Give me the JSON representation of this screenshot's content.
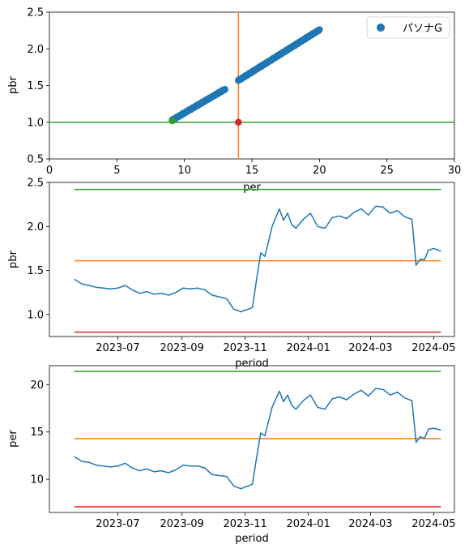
{
  "colors": {
    "blue": "#1f77b4",
    "orange": "#ff7f0e",
    "green": "#2ca02c",
    "red": "#d62728"
  },
  "chart_data": [
    {
      "type": "scatter",
      "xlabel": "per",
      "ylabel": "pbr",
      "xlim": [
        0,
        30
      ],
      "ylim": [
        0.5,
        2.5
      ],
      "xticks": [
        "0",
        "5",
        "10",
        "15",
        "20",
        "25",
        "30"
      ],
      "yticks": [
        "0.5",
        "1.0",
        "1.5",
        "2.0",
        "2.5"
      ],
      "legend": {
        "placement": "top-right",
        "entries": [
          "パソナG"
        ]
      },
      "series": [
        {
          "name": "パソナG",
          "color": "blue",
          "segments": [
            {
              "x_start": 9.1,
              "x_end": 13.0,
              "y_start": 1.03,
              "y_end": 1.45,
              "points": 60
            },
            {
              "x_start": 14.0,
              "x_end": 20.0,
              "y_start": 1.57,
              "y_end": 2.26,
              "points": 90
            }
          ]
        }
      ],
      "hline": {
        "y": 1.0,
        "color": "green"
      },
      "vline": {
        "x": 14.0,
        "color": "orange"
      },
      "marker_red": {
        "x": 14.0,
        "y": 1.0
      },
      "marker_green": {
        "x": 9.1,
        "y": 1.02
      }
    },
    {
      "type": "line",
      "xlabel": "period",
      "ylabel": "pbr",
      "ylim": [
        0.75,
        2.5
      ],
      "xticks": [
        "2023-07",
        "2023-09",
        "2023-11",
        "2024-01",
        "2024-03",
        "2024-05"
      ],
      "yticks": [
        "1.0",
        "1.5",
        "2.0",
        "2.5"
      ],
      "hlines": [
        {
          "y": 2.42,
          "color": "green"
        },
        {
          "y": 1.61,
          "color": "orange"
        },
        {
          "y": 0.8,
          "color": "red"
        }
      ]
    },
    {
      "type": "line",
      "xlabel": "period",
      "ylabel": "per",
      "ylim": [
        6.5,
        22
      ],
      "xticks": [
        "2023-07",
        "2023-09",
        "2023-11",
        "2024-01",
        "2024-03",
        "2024-05"
      ],
      "yticks": [
        "10",
        "15",
        "20"
      ],
      "hlines": [
        {
          "y": 21.4,
          "color": "green"
        },
        {
          "y": 14.3,
          "color": "orange"
        },
        {
          "y": 7.1,
          "color": "red"
        }
      ]
    }
  ],
  "pbr_series": {
    "name": "pbr",
    "color": "blue",
    "dates": [
      "2023-05-20",
      "2023-05-27",
      "2023-06-03",
      "2023-06-10",
      "2023-06-17",
      "2023-06-24",
      "2023-07-01",
      "2023-07-08",
      "2023-07-15",
      "2023-07-22",
      "2023-07-29",
      "2023-08-05",
      "2023-08-12",
      "2023-08-19",
      "2023-08-26",
      "2023-09-02",
      "2023-09-09",
      "2023-09-16",
      "2023-09-23",
      "2023-09-30",
      "2023-10-07",
      "2023-10-14",
      "2023-10-21",
      "2023-10-28",
      "2023-11-01",
      "2023-11-04",
      "2023-11-08",
      "2023-11-12",
      "2023-11-16",
      "2023-11-20",
      "2023-11-27",
      "2023-12-04",
      "2023-12-08",
      "2023-12-12",
      "2023-12-16",
      "2023-12-20",
      "2023-12-27",
      "2024-01-03",
      "2024-01-10",
      "2024-01-17",
      "2024-01-24",
      "2024-01-31",
      "2024-02-07",
      "2024-02-14",
      "2024-02-21",
      "2024-02-28",
      "2024-03-06",
      "2024-03-13",
      "2024-03-20",
      "2024-03-27",
      "2024-04-03",
      "2024-04-10",
      "2024-04-14",
      "2024-04-18",
      "2024-04-22",
      "2024-04-26",
      "2024-05-01",
      "2024-05-08"
    ],
    "values": [
      1.4,
      1.35,
      1.33,
      1.31,
      1.3,
      1.29,
      1.3,
      1.33,
      1.28,
      1.24,
      1.26,
      1.23,
      1.24,
      1.22,
      1.25,
      1.3,
      1.29,
      1.3,
      1.28,
      1.22,
      1.2,
      1.18,
      1.06,
      1.03,
      1.05,
      1.06,
      1.08,
      1.4,
      1.7,
      1.66,
      2.0,
      2.2,
      2.07,
      2.15,
      2.02,
      1.98,
      2.08,
      2.15,
      2.0,
      1.98,
      2.1,
      2.12,
      2.09,
      2.16,
      2.2,
      2.13,
      2.23,
      2.22,
      2.15,
      2.18,
      2.11,
      2.08,
      1.56,
      1.63,
      1.62,
      1.73,
      1.75,
      1.72
    ]
  },
  "per_series": {
    "name": "per",
    "color": "blue",
    "dates": [
      "2023-05-20",
      "2023-05-27",
      "2023-06-03",
      "2023-06-10",
      "2023-06-17",
      "2023-06-24",
      "2023-07-01",
      "2023-07-08",
      "2023-07-15",
      "2023-07-22",
      "2023-07-29",
      "2023-08-05",
      "2023-08-12",
      "2023-08-19",
      "2023-08-26",
      "2023-09-02",
      "2023-09-09",
      "2023-09-16",
      "2023-09-23",
      "2023-09-30",
      "2023-10-07",
      "2023-10-14",
      "2023-10-21",
      "2023-10-28",
      "2023-11-01",
      "2023-11-04",
      "2023-11-08",
      "2023-11-12",
      "2023-11-16",
      "2023-11-20",
      "2023-11-27",
      "2023-12-04",
      "2023-12-08",
      "2023-12-12",
      "2023-12-16",
      "2023-12-20",
      "2023-12-27",
      "2024-01-03",
      "2024-01-10",
      "2024-01-17",
      "2024-01-24",
      "2024-01-31",
      "2024-02-07",
      "2024-02-14",
      "2024-02-21",
      "2024-02-28",
      "2024-03-06",
      "2024-03-13",
      "2024-03-20",
      "2024-03-27",
      "2024-04-03",
      "2024-04-10",
      "2024-04-14",
      "2024-04-18",
      "2024-04-22",
      "2024-04-26",
      "2024-05-01",
      "2024-05-08"
    ],
    "values": [
      12.4,
      11.9,
      11.8,
      11.5,
      11.4,
      11.3,
      11.4,
      11.7,
      11.2,
      10.9,
      11.1,
      10.8,
      10.9,
      10.7,
      11.0,
      11.5,
      11.4,
      11.4,
      11.2,
      10.5,
      10.4,
      10.3,
      9.3,
      9.0,
      9.2,
      9.3,
      9.5,
      12.3,
      14.9,
      14.6,
      17.6,
      19.3,
      18.2,
      18.9,
      17.8,
      17.4,
      18.3,
      18.9,
      17.6,
      17.4,
      18.5,
      18.7,
      18.4,
      19.0,
      19.4,
      18.8,
      19.6,
      19.5,
      18.9,
      19.2,
      18.6,
      18.3,
      13.9,
      14.5,
      14.3,
      15.3,
      15.4,
      15.2
    ]
  }
}
